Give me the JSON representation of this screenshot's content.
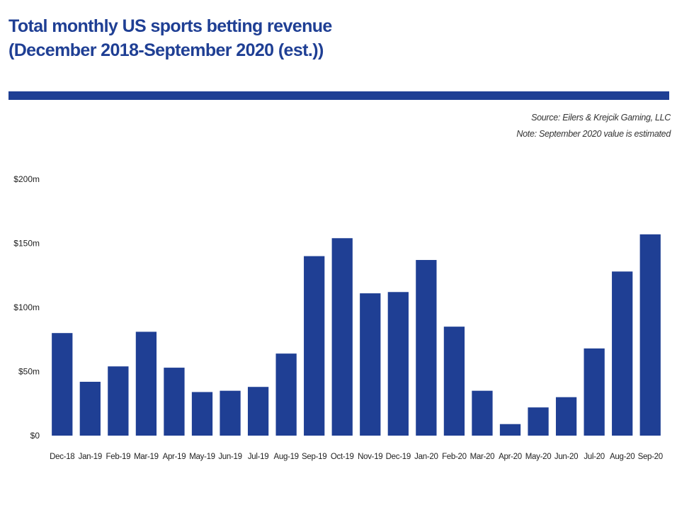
{
  "header": {
    "title_line1": "Total monthly US sports betting revenue",
    "title_line2": "(December 2018-September 2020 (est.))"
  },
  "notes": {
    "source": "Source: Eilers & Krejcik Gaming, LLC",
    "note": "Note: September 2020 value is estimated"
  },
  "colors": {
    "accent": "#1f3f94",
    "bar": "#1f3f94"
  },
  "chart_data": {
    "type": "bar",
    "title": "Total monthly US sports betting revenue (December 2018-September 2020 (est.))",
    "xlabel": "",
    "ylabel": "",
    "ylim": [
      0,
      200
    ],
    "unit": "$m",
    "grid": false,
    "categories": [
      "Dec-18",
      "Jan-19",
      "Feb-19",
      "Mar-19",
      "Apr-19",
      "May-19",
      "Jun-19",
      "Jul-19",
      "Aug-19",
      "Sep-19",
      "Oct-19",
      "Nov-19",
      "Dec-19",
      "Jan-20",
      "Feb-20",
      "Mar-20",
      "Apr-20",
      "May-20",
      "Jun-20",
      "Jul-20",
      "Aug-20",
      "Sep-20"
    ],
    "values": [
      80,
      42,
      54,
      81,
      53,
      34,
      35,
      38,
      64,
      140,
      154,
      111,
      112,
      137,
      85,
      35,
      9,
      22,
      30,
      68,
      128,
      157
    ],
    "yticks": [
      {
        "value": 0,
        "label": "$0"
      },
      {
        "value": 50,
        "label": "$50m"
      },
      {
        "value": 100,
        "label": "$100m"
      },
      {
        "value": 150,
        "label": "$150m"
      },
      {
        "value": 200,
        "label": "$200m"
      }
    ]
  }
}
